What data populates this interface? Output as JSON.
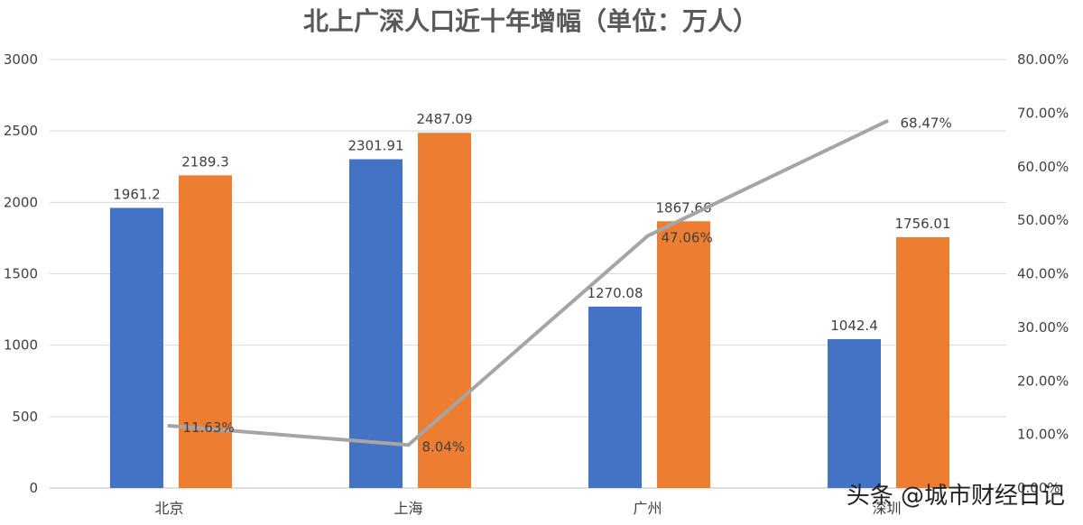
{
  "colors": {
    "series_a": "#4472C4",
    "series_b": "#ED7D31",
    "line": "#A5A5A5",
    "grid": "#D9D9D9",
    "text": "#404040",
    "title": "#595959"
  },
  "watermark": "头条 @城市财经日记",
  "chart_data": {
    "type": "bar",
    "title": "北上广深人口近十年增幅（单位：万人）",
    "categories": [
      "北京",
      "上海",
      "广州",
      "深圳"
    ],
    "series": [
      {
        "values": [
          1961.2,
          2301.91,
          1270.08,
          1042.4
        ],
        "labels": [
          "1961.2",
          "2301.91",
          "1270.08",
          "1042.4"
        ]
      },
      {
        "values": [
          2189.3,
          2487.09,
          1867.66,
          1756.01
        ],
        "labels": [
          "2189.3",
          "2487.09",
          "1867.66",
          "1756.01"
        ]
      }
    ],
    "line_series": {
      "type": "line",
      "axis": "secondary",
      "values": [
        11.63,
        8.04,
        47.06,
        68.47
      ],
      "labels": [
        "11.63%",
        "8.04%",
        "47.06%",
        "68.47%"
      ]
    },
    "ylim": [
      0,
      3000
    ],
    "yticks": [
      "0",
      "500",
      "1000",
      "1500",
      "2000",
      "2500",
      "3000"
    ],
    "y2lim": [
      0,
      80
    ],
    "y2ticks": [
      "0.00%",
      "10.00%",
      "20.00%",
      "30.00%",
      "40.00%",
      "50.00%",
      "60.00%",
      "70.00%",
      "80.00%"
    ],
    "grid": true,
    "legend": "none"
  }
}
